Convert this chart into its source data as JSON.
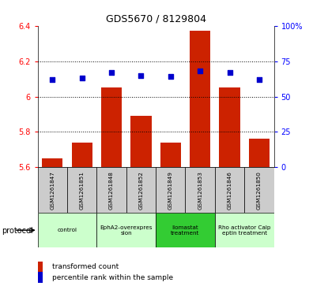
{
  "title": "GDS5670 / 8129804",
  "samples": [
    "GSM1261847",
    "GSM1261851",
    "GSM1261848",
    "GSM1261852",
    "GSM1261849",
    "GSM1261853",
    "GSM1261846",
    "GSM1261850"
  ],
  "bar_values": [
    5.65,
    5.74,
    6.05,
    5.89,
    5.74,
    6.37,
    6.05,
    5.76
  ],
  "dot_values": [
    62,
    63,
    67,
    65,
    64,
    68,
    67,
    62
  ],
  "bar_color": "#cc2200",
  "dot_color": "#0000cc",
  "ylim_left": [
    5.6,
    6.4
  ],
  "ylim_right": [
    0,
    100
  ],
  "yticks_left": [
    5.6,
    5.8,
    6.0,
    6.2,
    6.4
  ],
  "yticks_right": [
    0,
    25,
    50,
    75,
    100
  ],
  "ytick_labels_right": [
    "0",
    "25",
    "50",
    "75",
    "100%"
  ],
  "ytick_labels_left": [
    "5.6",
    "5.8",
    "6",
    "6.2",
    "6.4"
  ],
  "groups": [
    {
      "label": "control",
      "indices": [
        0,
        1
      ],
      "color": "#ccffcc"
    },
    {
      "label": "EphA2-overexpres\nsion",
      "indices": [
        2,
        3
      ],
      "color": "#ccffcc"
    },
    {
      "label": "Ilomastat\ntreatment",
      "indices": [
        4,
        5
      ],
      "color": "#33cc33"
    },
    {
      "label": "Rho activator Calp\neptin treatment",
      "indices": [
        6,
        7
      ],
      "color": "#ccffcc"
    }
  ],
  "protocol_label": "protocol",
  "legend1": "transformed count",
  "legend2": "percentile rank within the sample",
  "bar_bottom": 5.6,
  "sample_box_color": "#cccccc",
  "grid_dotted_at": [
    5.8,
    6.0,
    6.2
  ]
}
